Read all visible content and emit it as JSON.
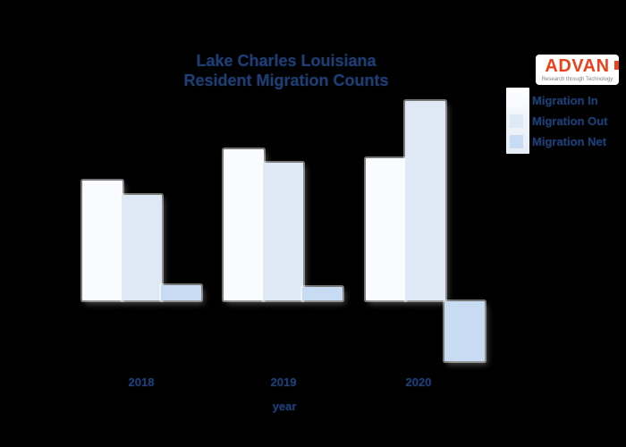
{
  "title": {
    "line1": "Lake Charles Louisiana",
    "line2": "Resident Migration Counts"
  },
  "logo": {
    "brand": "ADVAN",
    "tagline": "Research through Technology",
    "brand_color": "#e8431c"
  },
  "legend": {
    "items": [
      {
        "label": "Migration In",
        "color": "#f9fbfe"
      },
      {
        "label": "Migration Out",
        "color": "#dfe9f6"
      },
      {
        "label": "Migration Net",
        "color": "#c7dcf2"
      }
    ]
  },
  "x_axis": {
    "label": "year",
    "ticks": [
      "2018",
      "2019",
      "2020"
    ]
  },
  "colors": {
    "background": "#000000",
    "text": "#1e3d72"
  },
  "chart_data": {
    "type": "bar",
    "title": "Lake Charles Louisiana Resident Migration Counts",
    "xlabel": "year",
    "ylabel": "",
    "categories": [
      "2018",
      "2019",
      "2020"
    ],
    "series": [
      {
        "name": "Migration In",
        "color": "#f9fbfe",
        "values": [
          134,
          169,
          159
        ]
      },
      {
        "name": "Migration Out",
        "color": "#dfe9f6",
        "values": [
          118,
          154,
          223
        ]
      },
      {
        "name": "Migration Net",
        "color": "#c7dcf2",
        "values": [
          17,
          15,
          -67
        ]
      }
    ],
    "ylim": [
      -80,
      240
    ],
    "y_axis_visible": false,
    "grid": false,
    "legend_position": "upper right"
  }
}
